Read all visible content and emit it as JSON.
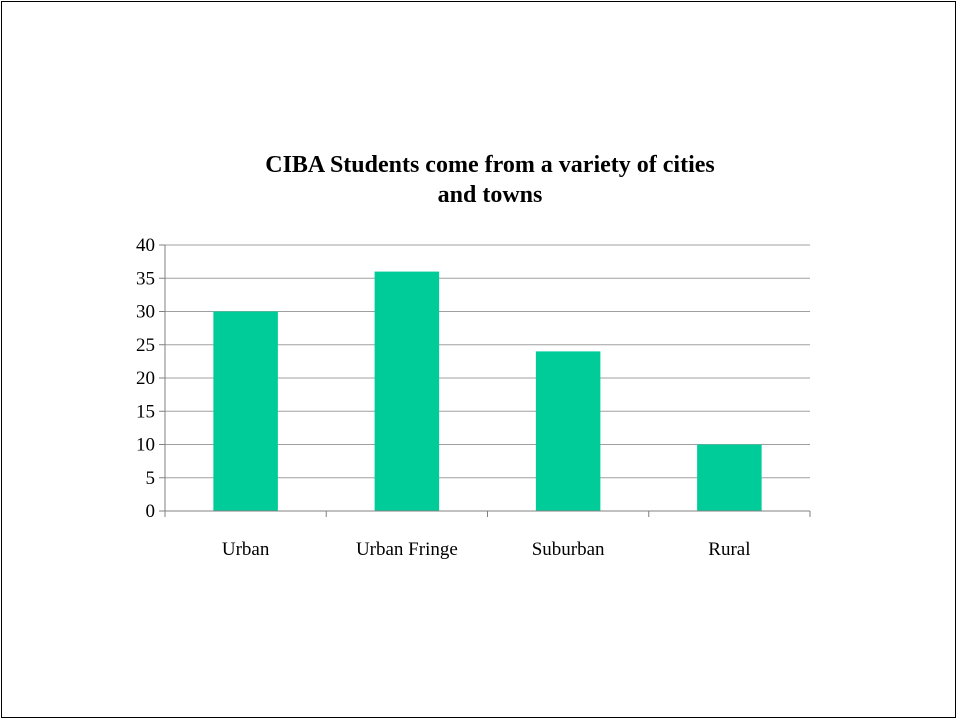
{
  "chart_data": {
    "type": "bar",
    "title_lines": [
      "CIBA Students come from a variety of cities",
      "and towns"
    ],
    "categories": [
      "Urban",
      "Urban Fringe",
      "Suburban",
      "Rural"
    ],
    "series": [
      {
        "values": [
          30,
          36,
          24,
          10
        ]
      }
    ],
    "y_ticks": [
      "0",
      "5",
      "10",
      "15",
      "20",
      "25",
      "30",
      "35",
      "40"
    ],
    "ylim": [
      0,
      40
    ],
    "grid": true,
    "legend": "none",
    "colors": {
      "bar": "#00CC99",
      "grid": "#A0A0A0",
      "axis": "#808080"
    }
  }
}
